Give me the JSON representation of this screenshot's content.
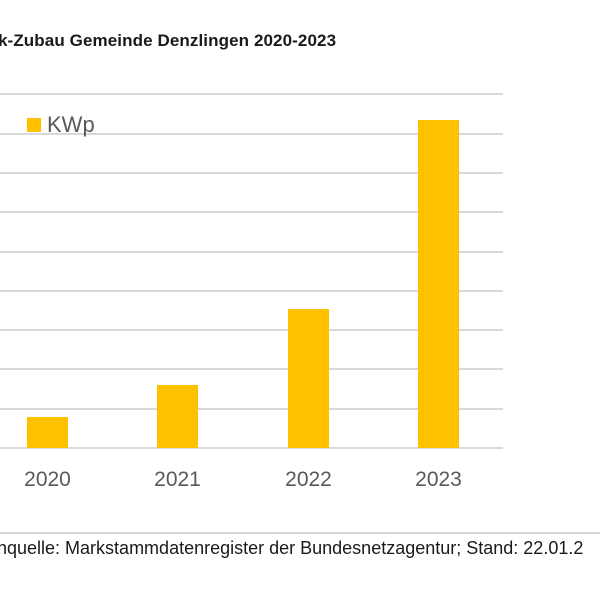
{
  "title": "k-Zubau Gemeinde Denzlingen 2020-2023",
  "source": "nquelle: Markstammdatenregister der Bundesnetzagentur; Stand: 22.01.2",
  "colors": {
    "bar": "#FFC000",
    "gridline": "#D9D9D9",
    "axis_text": "#595959",
    "title_text": "#1A1A1A"
  },
  "legend": {
    "label": "KWp",
    "icon": "square-swatch-icon"
  },
  "chart_data": {
    "type": "bar",
    "title": "k-Zubau Gemeinde Denzlingen 2020-2023",
    "xlabel": "",
    "ylabel": "",
    "categories": [
      "2020",
      "2021",
      "2022",
      "2023"
    ],
    "series": [
      {
        "name": "KWp",
        "values": [
          0.79,
          1.6,
          3.54,
          8.35
        ]
      }
    ],
    "value_unit_note": "values in gridline intervals (y-axis tick labels not visible)",
    "ylim": [
      0,
      9
    ],
    "grid": true,
    "gridline_count": 10,
    "legend_position": "top-left inside plot"
  }
}
